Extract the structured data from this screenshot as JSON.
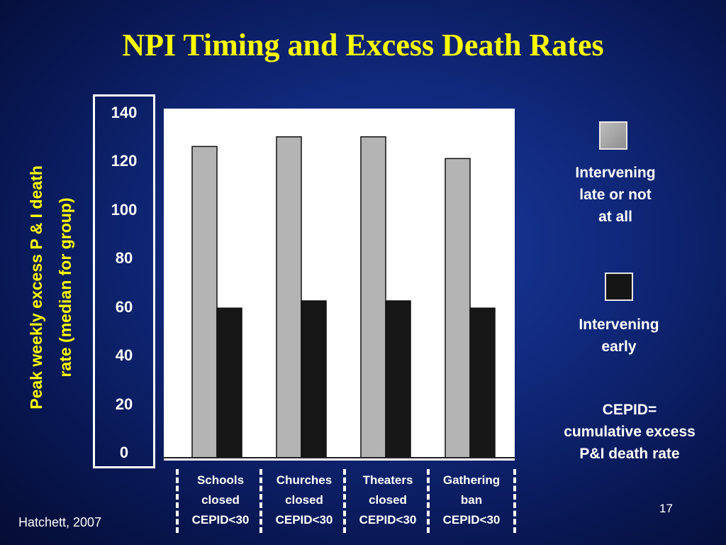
{
  "slide": {
    "title": "NPI Timing and Excess Death Rates",
    "source": "Hatchett, 2007",
    "page_number": "17",
    "note_line1": "CEPID=",
    "note_line2": "cumulative excess",
    "note_line3": "P&I death rate"
  },
  "legend": {
    "late_line1": "Intervening",
    "late_line2": "late or not",
    "late_line3": "at all",
    "early_line1": "Intervening",
    "early_line2": "early"
  },
  "x_labels": [
    {
      "line1": "Schools",
      "line2": "closed",
      "line3": "CEPID<30"
    },
    {
      "line1": "Churches",
      "line2": "closed",
      "line3": "CEPID<30"
    },
    {
      "line1": "Theaters",
      "line2": "closed",
      "line3": "CEPID<30"
    },
    {
      "line1": "Gathering",
      "line2": "ban",
      "line3": "CEPID<30"
    }
  ],
  "chart_data": {
    "type": "bar",
    "title": "NPI Timing and Excess Death Rates",
    "ylabel_line1": "Peak weekly excess P & I death",
    "ylabel_line2": "rate (median for group)",
    "xlabel": "",
    "categories": [
      "Schools closed CEPID<30",
      "Churches closed CEPID<30",
      "Theaters closed CEPID<30",
      "Gathering ban CEPID<30"
    ],
    "series": [
      {
        "name": "Intervening late or not at all",
        "color": "#b4b4b4",
        "values": [
          129,
          133,
          133,
          124
        ]
      },
      {
        "name": "Intervening early",
        "color": "#171717",
        "values": [
          62,
          65,
          65,
          62
        ]
      }
    ],
    "ylim": [
      0,
      140
    ],
    "yticks": [
      "140",
      "120",
      "100",
      "80",
      "60",
      "40",
      "20",
      "0"
    ],
    "grid": false,
    "legend_position": "right"
  }
}
